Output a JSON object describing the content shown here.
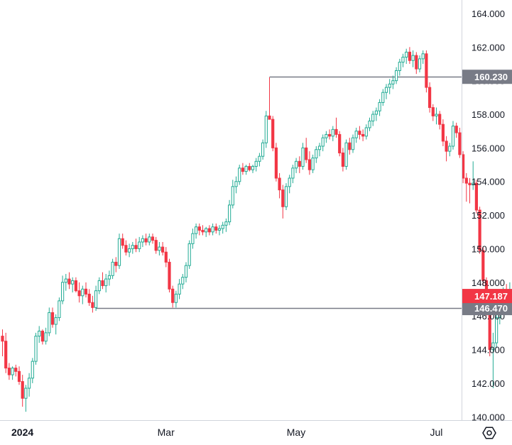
{
  "chart_data": {
    "type": "candlestick",
    "colors": {
      "up": "#22ab94",
      "down": "#f23645",
      "up_fill": "#ffffff",
      "down_fill": "#f23645",
      "grid_line": "#787b86",
      "axis_line": "#d1d4dc",
      "badge_bg": "#787b86",
      "price_badge_bg": "#f23645"
    },
    "ylim": [
      139.8,
      164.8
    ],
    "y_ticks": [
      140.0,
      142.0,
      144.0,
      146.0,
      148.0,
      150.0,
      152.0,
      154.0,
      156.0,
      158.0,
      160.0,
      162.0,
      164.0
    ],
    "y_tick_labels": [
      "140.000",
      "142.000",
      "144.000",
      "146.000",
      "148.000",
      "150.000",
      "152.000",
      "154.000",
      "156.000",
      "158.000",
      "160.000",
      "162.000",
      "164.000"
    ],
    "x_ticks": [
      {
        "label": "2024",
        "bold": true,
        "bar_index": 3
      },
      {
        "label": "Mar",
        "bold": false,
        "bar_index": 46
      },
      {
        "label": "May",
        "bold": false,
        "bar_index": 85
      },
      {
        "label": "Jul",
        "bold": false,
        "bar_index": 127
      }
    ],
    "horizontal_lines": [
      {
        "value": 160.23,
        "label": "160.230",
        "start_bar": 80
      },
      {
        "value": 146.47,
        "label": "146.470",
        "start_bar": 28
      }
    ],
    "current_price": {
      "value": 147.187,
      "label": "147.187"
    },
    "axis_icon": "settings-icon",
    "ohlc": [
      [
        144.8,
        145.2,
        143.6,
        144.5
      ],
      [
        144.5,
        145.0,
        142.6,
        142.9
      ],
      [
        142.9,
        143.2,
        142.2,
        142.5
      ],
      [
        142.5,
        143.0,
        142.2,
        142.9
      ],
      [
        142.9,
        143.1,
        142.4,
        142.7
      ],
      [
        142.7,
        143.0,
        141.9,
        142.1
      ],
      [
        142.1,
        142.5,
        140.6,
        141.1
      ],
      [
        141.1,
        141.9,
        140.3,
        141.7
      ],
      [
        141.7,
        142.6,
        141.2,
        142.3
      ],
      [
        142.3,
        143.5,
        142.0,
        143.3
      ],
      [
        143.3,
        145.0,
        143.1,
        144.8
      ],
      [
        144.8,
        145.4,
        144.4,
        145.1
      ],
      [
        145.1,
        145.2,
        144.3,
        144.5
      ],
      [
        144.5,
        145.3,
        144.3,
        145.0
      ],
      [
        145.0,
        146.5,
        144.8,
        146.2
      ],
      [
        146.2,
        146.5,
        145.3,
        145.5
      ],
      [
        145.5,
        146.1,
        144.9,
        145.9
      ],
      [
        145.9,
        147.1,
        145.7,
        146.9
      ],
      [
        146.9,
        148.4,
        146.7,
        148.0
      ],
      [
        148.0,
        148.5,
        147.5,
        148.2
      ],
      [
        148.2,
        148.6,
        147.6,
        147.9
      ],
      [
        147.9,
        148.3,
        147.4,
        148.1
      ],
      [
        148.1,
        148.3,
        147.4,
        147.5
      ],
      [
        147.5,
        148.0,
        146.8,
        147.2
      ],
      [
        147.2,
        147.8,
        146.7,
        147.6
      ],
      [
        147.6,
        148.0,
        147.1,
        147.3
      ],
      [
        147.3,
        147.6,
        146.6,
        146.8
      ],
      [
        146.8,
        147.2,
        146.2,
        146.5
      ],
      [
        146.5,
        147.8,
        146.3,
        147.5
      ],
      [
        147.5,
        148.3,
        147.3,
        148.1
      ],
      [
        148.1,
        148.6,
        147.6,
        147.8
      ],
      [
        147.8,
        148.5,
        147.4,
        148.2
      ],
      [
        148.2,
        148.7,
        147.8,
        148.4
      ],
      [
        148.4,
        149.4,
        148.2,
        149.2
      ],
      [
        149.2,
        149.5,
        148.6,
        149.0
      ],
      [
        149.0,
        150.9,
        148.8,
        150.6
      ],
      [
        150.6,
        150.9,
        150.0,
        150.2
      ],
      [
        150.2,
        150.5,
        149.6,
        149.8
      ],
      [
        149.8,
        150.3,
        149.5,
        150.0
      ],
      [
        150.0,
        150.4,
        149.7,
        150.2
      ],
      [
        150.2,
        150.6,
        149.8,
        150.0
      ],
      [
        150.0,
        150.7,
        149.8,
        150.4
      ],
      [
        150.4,
        150.8,
        150.1,
        150.6
      ],
      [
        150.6,
        150.9,
        150.2,
        150.4
      ],
      [
        150.4,
        150.9,
        150.2,
        150.7
      ],
      [
        150.7,
        150.9,
        150.3,
        150.5
      ],
      [
        150.5,
        150.7,
        149.7,
        149.9
      ],
      [
        149.9,
        150.4,
        149.6,
        150.1
      ],
      [
        150.1,
        150.4,
        149.6,
        149.8
      ],
      [
        149.8,
        150.1,
        148.9,
        149.2
      ],
      [
        149.2,
        149.4,
        147.4,
        147.6
      ],
      [
        147.6,
        147.8,
        146.5,
        146.8
      ],
      [
        146.8,
        147.5,
        146.5,
        147.3
      ],
      [
        147.3,
        148.2,
        147.0,
        147.9
      ],
      [
        147.9,
        148.5,
        147.6,
        148.3
      ],
      [
        148.3,
        149.2,
        148.0,
        149.0
      ],
      [
        149.0,
        150.5,
        148.8,
        150.3
      ],
      [
        150.3,
        151.2,
        150.0,
        150.9
      ],
      [
        150.9,
        151.5,
        150.6,
        151.3
      ],
      [
        151.3,
        151.5,
        150.8,
        151.1
      ],
      [
        151.1,
        151.4,
        150.8,
        151.0
      ],
      [
        151.0,
        151.3,
        150.7,
        151.2
      ],
      [
        151.2,
        151.4,
        150.8,
        151.0
      ],
      [
        151.0,
        151.5,
        150.8,
        151.3
      ],
      [
        151.3,
        151.5,
        150.9,
        151.1
      ],
      [
        151.1,
        151.4,
        150.8,
        151.2
      ],
      [
        151.2,
        151.6,
        150.9,
        151.4
      ],
      [
        151.4,
        151.8,
        151.0,
        151.6
      ],
      [
        151.6,
        152.9,
        151.4,
        152.6
      ],
      [
        152.6,
        154.1,
        152.4,
        153.7
      ],
      [
        153.7,
        154.3,
        153.3,
        154.0
      ],
      [
        154.0,
        155.0,
        153.8,
        154.8
      ],
      [
        154.8,
        155.1,
        154.4,
        154.6
      ],
      [
        154.6,
        155.0,
        154.4,
        154.9
      ],
      [
        154.9,
        155.1,
        154.6,
        154.7
      ],
      [
        154.7,
        155.0,
        154.5,
        154.9
      ],
      [
        154.9,
        155.4,
        154.6,
        155.2
      ],
      [
        155.2,
        155.7,
        154.9,
        155.5
      ],
      [
        155.5,
        156.5,
        155.3,
        156.3
      ],
      [
        156.3,
        158.2,
        156.0,
        157.9
      ],
      [
        157.9,
        160.2,
        157.7,
        157.7
      ],
      [
        157.7,
        157.9,
        155.8,
        156.0
      ],
      [
        156.0,
        156.3,
        154.0,
        154.2
      ],
      [
        154.2,
        154.5,
        153.0,
        153.5
      ],
      [
        153.5,
        153.8,
        151.8,
        152.5
      ],
      [
        152.5,
        153.9,
        152.3,
        153.7
      ],
      [
        153.7,
        154.4,
        153.3,
        154.2
      ],
      [
        154.2,
        155.0,
        153.9,
        154.8
      ],
      [
        154.8,
        155.4,
        154.5,
        155.2
      ],
      [
        155.2,
        155.5,
        154.5,
        154.9
      ],
      [
        154.9,
        156.3,
        154.7,
        156.0
      ],
      [
        156.0,
        156.6,
        155.1,
        155.3
      ],
      [
        155.3,
        155.8,
        154.4,
        154.7
      ],
      [
        154.7,
        155.6,
        154.5,
        155.4
      ],
      [
        155.4,
        156.1,
        155.1,
        155.9
      ],
      [
        155.9,
        156.3,
        155.5,
        156.1
      ],
      [
        156.1,
        156.8,
        155.8,
        156.6
      ],
      [
        156.6,
        157.0,
        156.3,
        156.8
      ],
      [
        156.8,
        157.1,
        156.5,
        156.7
      ],
      [
        156.7,
        157.3,
        156.4,
        157.1
      ],
      [
        157.1,
        157.8,
        156.6,
        156.8
      ],
      [
        156.8,
        157.0,
        155.5,
        155.7
      ],
      [
        155.7,
        156.0,
        154.6,
        154.9
      ],
      [
        154.9,
        156.5,
        154.7,
        156.3
      ],
      [
        156.3,
        156.6,
        155.6,
        155.9
      ],
      [
        155.9,
        156.8,
        155.7,
        156.6
      ],
      [
        156.6,
        157.2,
        156.3,
        157.0
      ],
      [
        157.0,
        157.3,
        156.5,
        156.8
      ],
      [
        156.8,
        157.1,
        156.4,
        156.7
      ],
      [
        156.7,
        157.4,
        156.5,
        157.2
      ],
      [
        157.2,
        157.8,
        157.0,
        157.6
      ],
      [
        157.6,
        158.2,
        157.3,
        158.0
      ],
      [
        158.0,
        158.4,
        157.6,
        158.2
      ],
      [
        158.2,
        158.9,
        157.9,
        158.7
      ],
      [
        158.7,
        159.5,
        158.5,
        159.3
      ],
      [
        159.3,
        159.8,
        158.9,
        159.6
      ],
      [
        159.6,
        160.1,
        159.2,
        159.8
      ],
      [
        159.8,
        160.3,
        159.5,
        160.0
      ],
      [
        160.0,
        160.8,
        159.8,
        160.6
      ],
      [
        160.6,
        161.3,
        160.3,
        161.1
      ],
      [
        161.1,
        161.6,
        160.8,
        161.4
      ],
      [
        161.4,
        161.9,
        161.0,
        161.7
      ],
      [
        161.7,
        162.0,
        161.0,
        161.2
      ],
      [
        161.2,
        161.8,
        160.8,
        161.5
      ],
      [
        161.5,
        161.7,
        160.4,
        160.7
      ],
      [
        160.7,
        161.5,
        160.5,
        161.3
      ],
      [
        161.3,
        161.8,
        161.0,
        161.6
      ],
      [
        161.6,
        161.8,
        159.3,
        159.6
      ],
      [
        159.6,
        159.9,
        158.1,
        158.4
      ],
      [
        158.4,
        158.6,
        157.6,
        157.9
      ],
      [
        157.9,
        158.4,
        157.4,
        158.0
      ],
      [
        158.0,
        158.2,
        157.1,
        157.4
      ],
      [
        157.4,
        157.7,
        156.1,
        156.4
      ],
      [
        156.4,
        156.7,
        155.2,
        155.8
      ],
      [
        155.8,
        156.3,
        155.5,
        156.1
      ],
      [
        156.1,
        157.6,
        155.9,
        157.3
      ],
      [
        157.3,
        157.5,
        156.6,
        156.9
      ],
      [
        156.9,
        157.2,
        155.4,
        155.6
      ],
      [
        155.6,
        155.8,
        153.9,
        154.2
      ],
      [
        154.2,
        154.5,
        152.8,
        153.9
      ],
      [
        153.9,
        154.2,
        152.7,
        153.8
      ],
      [
        153.8,
        155.2,
        153.5,
        153.9
      ],
      [
        153.9,
        154.1,
        152.1,
        152.3
      ],
      [
        152.3,
        152.5,
        149.7,
        149.9
      ],
      [
        149.9,
        150.1,
        147.8,
        148.1
      ],
      [
        148.1,
        148.3,
        146.0,
        146.3
      ],
      [
        146.3,
        146.5,
        143.6,
        144.0
      ],
      [
        144.0,
        145.0,
        141.7,
        144.4
      ],
      [
        144.4,
        146.3,
        144.1,
        145.9
      ],
      [
        145.9,
        146.9,
        145.5,
        146.5
      ],
      [
        146.5,
        147.7,
        146.2,
        147.4
      ],
      [
        147.4,
        147.9,
        146.8,
        147.0
      ],
      [
        147.0,
        148.0,
        146.5,
        147.5
      ],
      [
        147.5,
        148.3,
        146.9,
        147.0
      ],
      [
        147.0,
        147.5,
        146.2,
        147.3
      ],
      [
        147.3,
        147.5,
        146.8,
        147.187
      ]
    ]
  }
}
